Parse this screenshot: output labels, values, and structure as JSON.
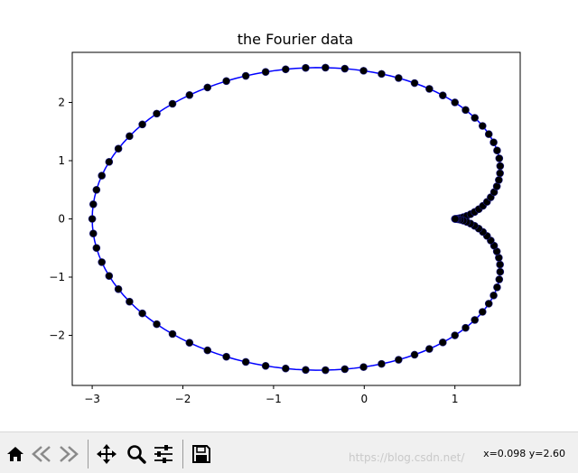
{
  "chart_data": {
    "type": "line",
    "title": "the Fourier data",
    "xlabel": "",
    "ylabel": "",
    "xlim": [
      -3.22,
      1.72
    ],
    "ylim": [
      -2.86,
      2.86
    ],
    "xticks": [
      -3,
      -2,
      -1,
      0,
      1
    ],
    "yticks": [
      -2,
      -1,
      0,
      1,
      2
    ],
    "xtick_labels": [
      "−3",
      "−2",
      "−1",
      "0",
      "1"
    ],
    "ytick_labels": [
      "−2",
      "−1",
      "0",
      "1",
      "2"
    ],
    "curve": "cardioid: x = 2cos(t) - cos(2t), y = 2sin(t) - sin(2t), t in [0, 2π]",
    "series": [
      {
        "style": "line",
        "color": "#0000ff",
        "samples": 200
      },
      {
        "style": "markers",
        "color": "#000000",
        "marker": "o",
        "samples": 100
      }
    ],
    "grid": false
  },
  "toolbar": {
    "buttons": [
      {
        "name": "home-button",
        "icon": "home-icon"
      },
      {
        "name": "back-button",
        "icon": "back-arrow-icon"
      },
      {
        "name": "forward-button",
        "icon": "forward-arrow-icon"
      },
      {
        "name": "pan-button",
        "icon": "move-icon"
      },
      {
        "name": "zoom-button",
        "icon": "magnifier-icon"
      },
      {
        "name": "subplots-button",
        "icon": "sliders-icon"
      },
      {
        "name": "save-button",
        "icon": "floppy-disk-icon"
      }
    ],
    "coordinates": "x=0.098 y=2.60",
    "watermark": "https://blog.csdn.net/"
  }
}
